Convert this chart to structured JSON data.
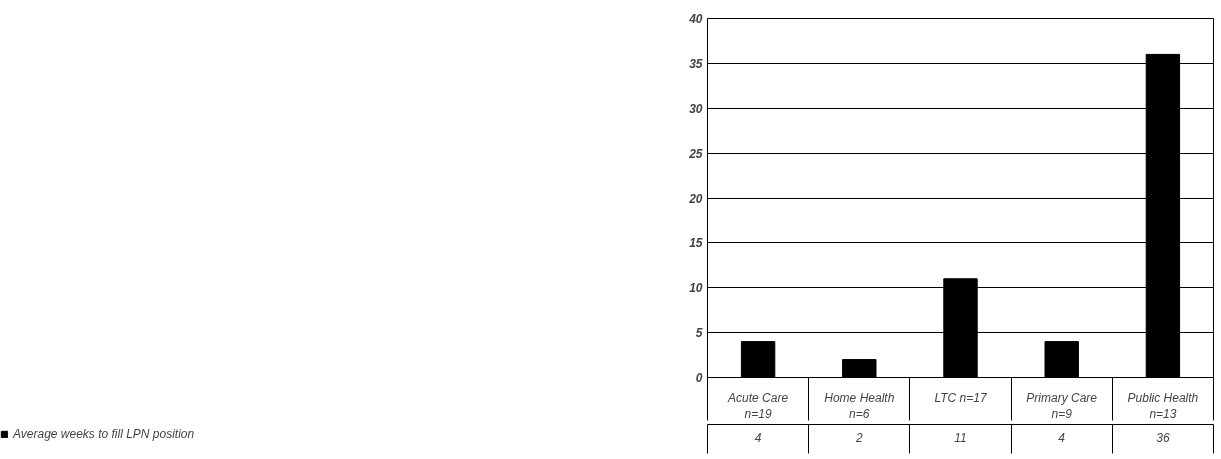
{
  "chart_data": {
    "type": "bar",
    "categories": [
      "Acute Care\nn=19",
      "Home Health\nn=6",
      "LTC n=17",
      "Primary Care\nn=9",
      "Public Health\nn=13"
    ],
    "series": [
      {
        "name": "Average weeks to fill LPN position",
        "color": "#000000",
        "values": [
          4,
          2,
          11,
          4,
          36
        ]
      }
    ],
    "ylim": [
      0,
      40
    ],
    "yticks": [
      0,
      5,
      10,
      15,
      20,
      25,
      30,
      35,
      40
    ],
    "grid": "y",
    "data_labels": true,
    "legend": "bottom left"
  }
}
